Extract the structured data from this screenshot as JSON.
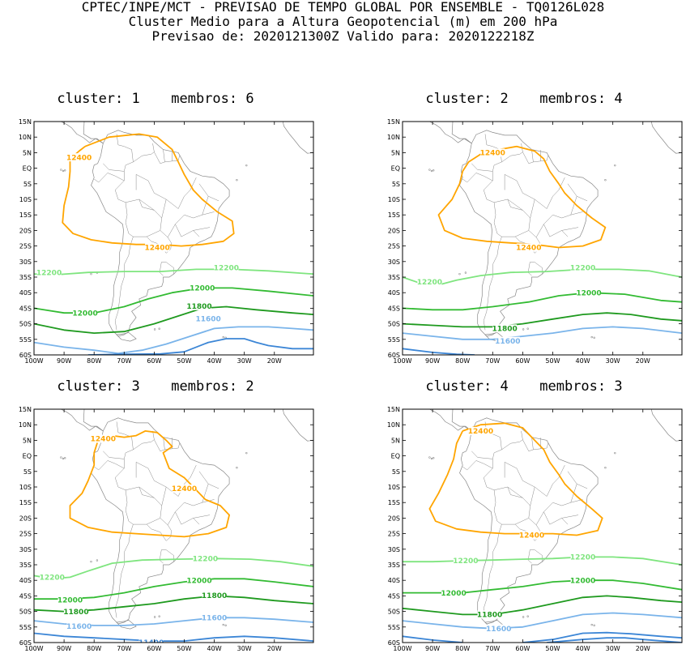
{
  "header": {
    "line1": "CPTEC/INPE/MCT - PREVISAO DE TEMPO GLOBAL POR ENSEMBLE - TQ0126L028",
    "line2": "Cluster Medio para a Altura Geopotencial (m) em 200 hPa",
    "line3": "Previsao de: 2020121300Z   Valido para: 2020122218Z"
  },
  "axes": {
    "lat_labels": [
      "15N",
      "10N",
      "5N",
      "EQ",
      "5S",
      "10S",
      "15S",
      "20S",
      "25S",
      "30S",
      "35S",
      "40S",
      "45S",
      "50S",
      "55S",
      "60S"
    ],
    "lon_labels": [
      "100W",
      "90W",
      "80W",
      "70W",
      "60W",
      "50W",
      "40W",
      "30W",
      "20W"
    ]
  },
  "colors": {
    "c12400": "#ffa500",
    "c12200": "#7fe57f",
    "c12000": "#33bb33",
    "c11800": "#1f9a1f",
    "c11600": "#7ab4ea",
    "c11400": "#3c86d6",
    "coast": "#888888"
  },
  "panels": [
    {
      "title_cluster": "cluster: 1",
      "title_members": "membros: 6",
      "contours": [
        {
          "level": "12400",
          "color": "c12400",
          "labels": [
            "12400",
            "12400"
          ]
        },
        {
          "level": "12200",
          "color": "c12200",
          "labels": [
            "12200",
            "12200"
          ]
        },
        {
          "level": "12000",
          "color": "c12000",
          "labels": [
            "12000",
            "12000"
          ]
        },
        {
          "level": "11800",
          "color": "c11800",
          "labels": [
            "11800"
          ]
        },
        {
          "level": "11600",
          "color": "c11600",
          "labels": [
            "11600"
          ]
        }
      ]
    },
    {
      "title_cluster": "cluster: 2",
      "title_members": "membros: 4",
      "contours": [
        {
          "level": "12400",
          "color": "c12400",
          "labels": [
            "12400",
            "12400"
          ]
        },
        {
          "level": "12200",
          "color": "c12200",
          "labels": [
            "12200",
            "12200"
          ]
        },
        {
          "level": "12000",
          "color": "c12000",
          "labels": [
            "12000"
          ]
        },
        {
          "level": "11800",
          "color": "c11800",
          "labels": [
            "11800"
          ]
        },
        {
          "level": "11600",
          "color": "c11600",
          "labels": [
            "11600"
          ]
        }
      ]
    },
    {
      "title_cluster": "cluster: 3",
      "title_members": "membros: 2",
      "contours": [
        {
          "level": "12400",
          "color": "c12400",
          "labels": [
            "12400",
            "12400"
          ]
        },
        {
          "level": "12200",
          "color": "c12200",
          "labels": [
            "12200",
            "12200"
          ]
        },
        {
          "level": "12000",
          "color": "c12000",
          "labels": [
            "12000",
            "12000"
          ]
        },
        {
          "level": "11800",
          "color": "c11800",
          "labels": [
            "11800",
            "11800"
          ]
        },
        {
          "level": "11600",
          "color": "c11600",
          "labels": [
            "11600",
            "11600"
          ]
        },
        {
          "level": "11400",
          "color": "c11400",
          "labels": [
            "11400"
          ]
        }
      ]
    },
    {
      "title_cluster": "cluster: 4",
      "title_members": "membros: 3",
      "contours": [
        {
          "level": "12400",
          "color": "c12400",
          "labels": [
            "12400",
            "12400"
          ]
        },
        {
          "level": "12200",
          "color": "c12200",
          "labels": [
            "12200",
            "12200"
          ]
        },
        {
          "level": "12000",
          "color": "c12000",
          "labels": [
            "12000",
            "12000"
          ]
        },
        {
          "level": "11800",
          "color": "c11800",
          "labels": [
            "11800"
          ]
        },
        {
          "level": "11600",
          "color": "c11600",
          "labels": [
            "11600"
          ]
        }
      ]
    }
  ]
}
